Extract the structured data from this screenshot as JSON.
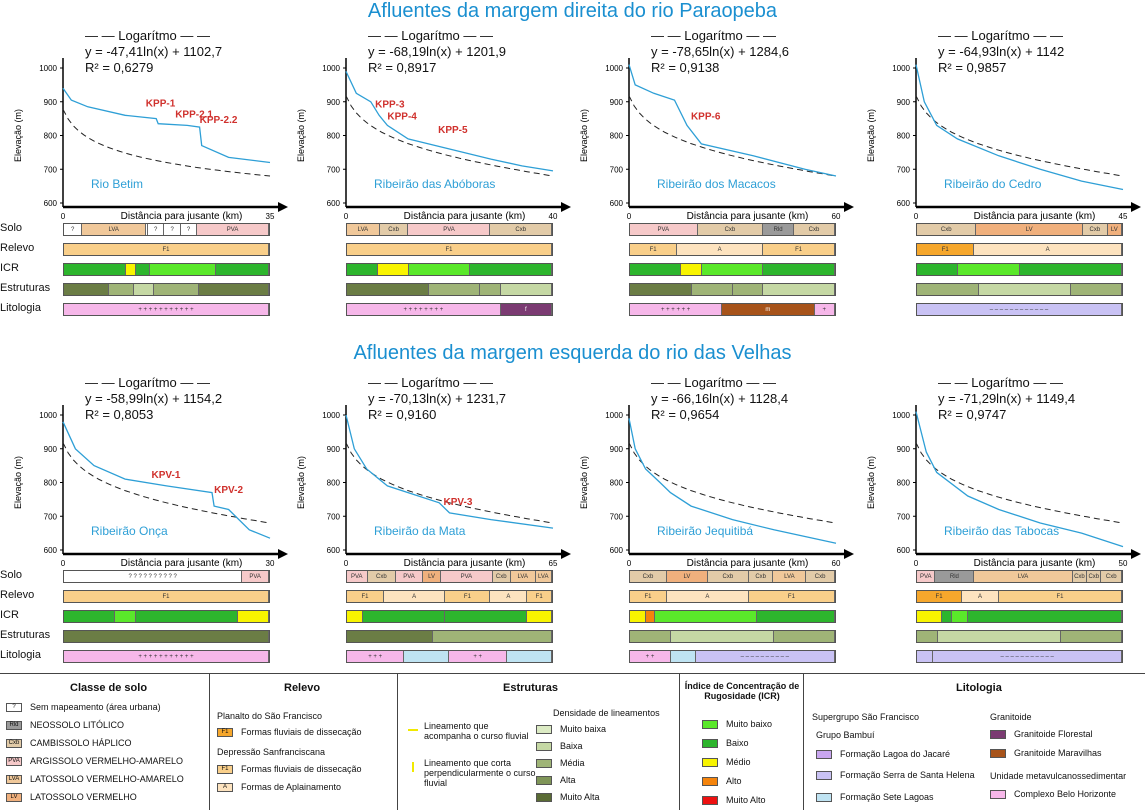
{
  "titles": {
    "top": "Afluentes da margem direita do rio Paraopeba",
    "bottom": "Afluentes da margem esquerda do rio das Velhas"
  },
  "common": {
    "legend_label": "Logarítmo",
    "ylabel": "Elevação (m)",
    "xlabel": "Distância para jusante (km)",
    "row_labels": [
      "Solo",
      "Relevo",
      "ICR",
      "Estruturas",
      "Litologia"
    ],
    "yticks": [
      "1000",
      "900",
      "800",
      "700",
      "600"
    ],
    "colors": {
      "profile": "#2e9fd6",
      "knick": "#d0312d"
    }
  },
  "panels": [
    {
      "name": "Rio Betim",
      "eq": "y = -47,41ln(x) + 1102,7",
      "r2": "R² = 0,6279",
      "xmax_label": "35",
      "knickpoints": [
        "KPP-1",
        "KPP-2.1",
        "KPP-2.2"
      ],
      "bars": {
        "solo": [
          [
            "?",
            9,
            "#ffffff"
          ],
          [
            "LVA",
            31,
            "#f0c89a"
          ],
          [
            "",
            1,
            "#ffffff"
          ],
          [
            "?",
            8,
            "#ffffff"
          ],
          [
            "?",
            8,
            "#ffffff"
          ],
          [
            "?",
            8,
            "#ffffff"
          ],
          [
            "PVA",
            35,
            "#f6c9c9"
          ]
        ],
        "relevo": [
          [
            "F1",
            100,
            "#f9cf8a"
          ]
        ],
        "icr": [
          [
            "",
            30,
            "#2db52d"
          ],
          [
            "",
            5,
            "#f8f400"
          ],
          [
            "",
            7,
            "#2db52d"
          ],
          [
            "",
            32,
            "#5ae82a"
          ],
          [
            "",
            26,
            "#2db52d"
          ]
        ],
        "estr": [
          [
            "",
            22,
            "#6b7d45"
          ],
          [
            "",
            12,
            "#9fb477"
          ],
          [
            "",
            10,
            "#c5d8a4"
          ],
          [
            "",
            22,
            "#9fb477"
          ],
          [
            "",
            34,
            "#6b7d45"
          ]
        ],
        "lito": [
          [
            "+ + + + + + + + + + +",
            100,
            "#f6b7e9"
          ]
        ]
      }
    },
    {
      "name": "Ribeirão das Abóboras",
      "eq": "y = -68,19ln(x) + 1201,9",
      "r2": "R² = 0,8917",
      "xmax_label": "40",
      "knickpoints": [
        "KPP-3",
        "KPP-4",
        "KPP-5"
      ],
      "bars": {
        "solo": [
          [
            "LVA",
            16,
            "#f0c89a"
          ],
          [
            "Cxb",
            14,
            "#e2cba8"
          ],
          [
            "PVA",
            40,
            "#f6c9c9"
          ],
          [
            "Cxb",
            30,
            "#e2cba8"
          ]
        ],
        "relevo": [
          [
            "F1",
            100,
            "#f9cf8a"
          ]
        ],
        "icr": [
          [
            "",
            15,
            "#2db52d"
          ],
          [
            "",
            15,
            "#f8f400"
          ],
          [
            "",
            30,
            "#5ae82a"
          ],
          [
            "",
            40,
            "#2db52d"
          ]
        ],
        "estr": [
          [
            "",
            40,
            "#6b7d45"
          ],
          [
            "",
            25,
            "#9fb477"
          ],
          [
            "",
            10,
            "#9fb477"
          ],
          [
            "",
            25,
            "#c5d8a4"
          ]
        ],
        "lito": [
          [
            "+ + + + + + + +",
            75,
            "#f6b7e9"
          ],
          [
            "f",
            25,
            "#7b3b72"
          ]
        ]
      }
    },
    {
      "name": "Ribeirão dos Macacos",
      "eq": "y = -78,65ln(x) + 1284,6",
      "r2": "R² = 0,9138",
      "xmax_label": "60",
      "knickpoints": [
        "KPP-6"
      ],
      "bars": {
        "solo": [
          [
            "PVA",
            33,
            "#f6c9c9"
          ],
          [
            "Cxb",
            32,
            "#e2cba8"
          ],
          [
            "Rld",
            15,
            "#9a9a9a"
          ],
          [
            "Cxb",
            20,
            "#e2cba8"
          ]
        ],
        "relevo": [
          [
            "F1",
            23,
            "#f9cf8a"
          ],
          [
            "A",
            42,
            "#fde3bf"
          ],
          [
            "F1",
            35,
            "#f9cf8a"
          ]
        ],
        "icr": [
          [
            "",
            25,
            "#2db52d"
          ],
          [
            "",
            10,
            "#f8f400"
          ],
          [
            "",
            30,
            "#5ae82a"
          ],
          [
            "",
            35,
            "#2db52d"
          ]
        ],
        "estr": [
          [
            "",
            30,
            "#6b7d45"
          ],
          [
            "",
            20,
            "#9fb477"
          ],
          [
            "",
            15,
            "#9fb477"
          ],
          [
            "",
            35,
            "#c5d8a4"
          ]
        ],
        "lito": [
          [
            "+ + + + + +",
            45,
            "#f6b7e9"
          ],
          [
            "m",
            45,
            "#a7531a"
          ],
          [
            "+",
            10,
            "#f6b7e9"
          ]
        ]
      }
    },
    {
      "name": "Ribeirão do Cedro",
      "eq": "y = -64,93ln(x) + 1142",
      "r2": "R² = 0,9857",
      "xmax_label": "45",
      "knickpoints": [],
      "bars": {
        "solo": [
          [
            "Cxb",
            29,
            "#e2cba8"
          ],
          [
            "LV",
            52,
            "#f0b07d"
          ],
          [
            "Cxb",
            12,
            "#e2cba8"
          ],
          [
            "LV",
            7,
            "#f0b07d"
          ]
        ],
        "relevo": [
          [
            "F1",
            28,
            "#f6a72c"
          ],
          [
            "A",
            72,
            "#fde3bf"
          ]
        ],
        "icr": [
          [
            "",
            20,
            "#2db52d"
          ],
          [
            "",
            30,
            "#5ae82a"
          ],
          [
            "",
            50,
            "#2db52d"
          ]
        ],
        "estr": [
          [
            "",
            30,
            "#9fb477"
          ],
          [
            "",
            45,
            "#c5d8a4"
          ],
          [
            "",
            25,
            "#9fb477"
          ]
        ],
        "lito": [
          [
            "– – – – – – – – – – – –",
            100,
            "#c9c2f4"
          ]
        ]
      }
    },
    {
      "name": "Ribeirão Onça",
      "eq": "y = -58,99ln(x) + 1154,2",
      "r2": "R² = 0,8053",
      "xmax_label": "30",
      "knickpoints": [
        "KPV-1",
        "KPV-2"
      ],
      "bars": {
        "solo": [
          [
            "? ? ? ? ? ? ? ? ? ?",
            87,
            "#ffffff"
          ],
          [
            "PVA",
            13,
            "#f6c9c9"
          ]
        ],
        "relevo": [
          [
            "F1",
            100,
            "#f9cf8a"
          ]
        ],
        "icr": [
          [
            "",
            25,
            "#2db52d"
          ],
          [
            "",
            10,
            "#5ae82a"
          ],
          [
            "",
            50,
            "#2db52d"
          ],
          [
            "",
            15,
            "#f8f400"
          ]
        ],
        "estr": [
          [
            "",
            100,
            "#6b7d45"
          ]
        ],
        "lito": [
          [
            "+ + + + + + + + + + +",
            100,
            "#f6b7e9"
          ]
        ]
      }
    },
    {
      "name": "Ribeirão da Mata",
      "eq": "y = -70,13ln(x) + 1231,7",
      "r2": "R² = 0,9160",
      "xmax_label": "65",
      "knickpoints": [
        "KPV-3"
      ],
      "bars": {
        "solo": [
          [
            "PVA",
            10,
            "#f6c9c9"
          ],
          [
            "Cxb",
            14,
            "#e2cba8"
          ],
          [
            "PVA",
            13,
            "#f6c9c9"
          ],
          [
            "LV",
            9,
            "#f0b07d"
          ],
          [
            "PVA",
            25,
            "#f6c9c9"
          ],
          [
            "Cxb",
            9,
            "#e2cba8"
          ],
          [
            "LVA",
            12,
            "#f0c89a"
          ],
          [
            "LVA",
            8,
            "#f0c89a"
          ]
        ],
        "relevo": [
          [
            "F1",
            18,
            "#f9cf8a"
          ],
          [
            "A",
            30,
            "#fde3bf"
          ],
          [
            "F1",
            22,
            "#f9cf8a"
          ],
          [
            "A",
            18,
            "#fde3bf"
          ],
          [
            "F1",
            12,
            "#f9cf8a"
          ]
        ],
        "icr": [
          [
            "",
            8,
            "#f8f400"
          ],
          [
            "",
            40,
            "#2db52d"
          ],
          [
            "",
            40,
            "#2db52d"
          ],
          [
            "",
            12,
            "#f8f400"
          ]
        ],
        "estr": [
          [
            "",
            42,
            "#6b7d45"
          ],
          [
            "",
            58,
            "#9fb477"
          ]
        ],
        "lito": [
          [
            "+ + +",
            28,
            "#f6b7e9"
          ],
          [
            "",
            22,
            "#bfe3f2"
          ],
          [
            "+ +",
            28,
            "#f6b7e9"
          ],
          [
            "",
            22,
            "#bfe3f2"
          ]
        ]
      }
    },
    {
      "name": "Ribeirão Jequitibá",
      "eq": "y = -66,16ln(x) + 1128,4",
      "r2": "R² = 0,9654",
      "xmax_label": "60",
      "knickpoints": [],
      "bars": {
        "solo": [
          [
            "Cxb",
            18,
            "#e2cba8"
          ],
          [
            "LV",
            20,
            "#f0b07d"
          ],
          [
            "Cxb",
            20,
            "#e2cba8"
          ],
          [
            "Cxb",
            12,
            "#e2cba8"
          ],
          [
            "LVA",
            16,
            "#f0c89a"
          ],
          [
            "Cxb",
            14,
            "#e2cba8"
          ]
        ],
        "relevo": [
          [
            "F1",
            18,
            "#f9cf8a"
          ],
          [
            "A",
            40,
            "#fde3bf"
          ],
          [
            "F1",
            42,
            "#f9cf8a"
          ]
        ],
        "icr": [
          [
            "",
            8,
            "#f8f400"
          ],
          [
            "",
            4,
            "#f5840c"
          ],
          [
            "",
            50,
            "#5ae82a"
          ],
          [
            "",
            38,
            "#2db52d"
          ]
        ],
        "estr": [
          [
            "",
            20,
            "#9fb477"
          ],
          [
            "",
            50,
            "#c5d8a4"
          ],
          [
            "",
            30,
            "#9fb477"
          ]
        ],
        "lito": [
          [
            "+ +",
            20,
            "#f6b7e9"
          ],
          [
            "",
            12,
            "#bfe3f2"
          ],
          [
            "– – – – – – – – – –",
            68,
            "#c9c2f4"
          ]
        ]
      }
    },
    {
      "name": "Ribeirão das Tabocas",
      "eq": "y = -71,29ln(x) + 1149,4",
      "r2": "R² = 0,9747",
      "xmax_label": "50",
      "knickpoints": [],
      "bars": {
        "solo": [
          [
            "PVA",
            9,
            "#f6c9c9"
          ],
          [
            "Rld",
            19,
            "#9a9a9a"
          ],
          [
            "LVA",
            48,
            "#f0c89a"
          ],
          [
            "Cxb",
            7,
            "#e2cba8"
          ],
          [
            "Cxb",
            7,
            "#e2cba8"
          ],
          [
            "Cxb",
            10,
            "#e2cba8"
          ]
        ],
        "relevo": [
          [
            "F1",
            22,
            "#f6a72c"
          ],
          [
            "A",
            18,
            "#fde3bf"
          ],
          [
            "F1",
            60,
            "#f9cf8a"
          ]
        ],
        "icr": [
          [
            "",
            12,
            "#f8f400"
          ],
          [
            "",
            5,
            "#2db52d"
          ],
          [
            "",
            8,
            "#5ae82a"
          ],
          [
            "",
            75,
            "#2db52d"
          ]
        ],
        "estr": [
          [
            "",
            10,
            "#9fb477"
          ],
          [
            "",
            60,
            "#c5d8a4"
          ],
          [
            "",
            30,
            "#9fb477"
          ]
        ],
        "lito": [
          [
            "",
            8,
            "#c9c2f4"
          ],
          [
            "– – – – – – – – – – –",
            92,
            "#c9c2f4"
          ]
        ]
      }
    }
  ],
  "legend": {
    "solo": {
      "title": "Classe de solo",
      "items": [
        [
          "?",
          "Sem mapeamento (área urbana)",
          "#ffffff"
        ],
        [
          "Rld",
          "NEOSSOLO LITÓLICO",
          "#9a9a9a"
        ],
        [
          "Cxb",
          "CAMBISSOLO HÁPLICO",
          "#e2cba8"
        ],
        [
          "PVA",
          "ARGISSOLO VERMELHO-AMARELO",
          "#f6c9c9"
        ],
        [
          "LVA",
          "LATOSSOLO VERMELHO-AMARELO",
          "#f0c89a"
        ],
        [
          "LV",
          "LATOSSOLO VERMELHO",
          "#f0b07d"
        ]
      ]
    },
    "relevo": {
      "title": "Relevo",
      "g1": "Planalto do São Francisco",
      "g2": "Depressão Sanfranciscana",
      "items": [
        [
          "F1",
          "Formas fluviais de dissecação",
          "#f6a72c"
        ],
        [
          "F1",
          "Formas fluviais de dissecação",
          "#f9cf8a"
        ],
        [
          "A",
          "Formas de Aplainamento",
          "#fde3bf"
        ]
      ]
    },
    "estr": {
      "title": "Estruturas",
      "dens_title": "Densidade de lineamentos",
      "lin1": "Lineamento que acompanha o curso fluvial",
      "lin2": "Lineamento que corta perpendicularmente o curso fluvial",
      "items": [
        [
          "Muito baixa",
          "#dcebc4"
        ],
        [
          "Baixa",
          "#c5d8a4"
        ],
        [
          "Média",
          "#9fb477"
        ],
        [
          "Alta",
          "#7f9558"
        ],
        [
          "Muito Alta",
          "#5a6b35"
        ]
      ]
    },
    "icr": {
      "title": "Índice de Concentração de Rugosidade (ICR)",
      "items": [
        [
          "Muito baixo",
          "#5ae82a"
        ],
        [
          "Baixo",
          "#2db52d"
        ],
        [
          "Médio",
          "#f8f400"
        ],
        [
          "Alto",
          "#f5840c"
        ],
        [
          "Muito Alto",
          "#ee1111"
        ]
      ]
    },
    "lito": {
      "title": "Litologia",
      "g1": "Supergrupo São Francisco",
      "g2": "Grupo Bambuí",
      "g3": "Granitoide",
      "g4": "Unidade metavulcanossedimentar",
      "items": [
        [
          "Formação Lagoa do Jacaré",
          "#c9a6f0"
        ],
        [
          "Formação Serra de Santa Helena",
          "#c9c2f4"
        ],
        [
          "Formação Sete Lagoas",
          "#bfe3f2"
        ],
        [
          "Granitoide Florestal",
          "#7b3b72"
        ],
        [
          "Granitoide Maravilhas",
          "#a7531a"
        ],
        [
          "Complexo Belo Horizonte",
          "#f6b7e9"
        ]
      ]
    }
  }
}
